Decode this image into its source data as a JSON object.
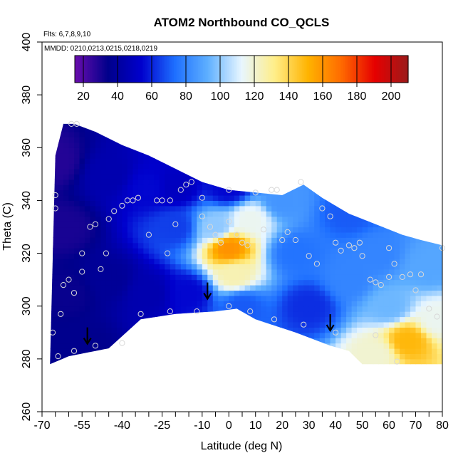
{
  "chart_data": {
    "type": "heatmap",
    "title": "ATOM2 Northbound CO_QCLS",
    "subtitle_flights": "Flts: 6,7,8,9,10",
    "subtitle_dates": "MMDD: 0210,0213,0215,0218,0219",
    "xlabel": "Latitude (deg N)",
    "ylabel": "Theta (C)",
    "xlim": [
      -70,
      80
    ],
    "ylim": [
      260,
      400
    ],
    "x_ticks": [
      -70,
      -55,
      -40,
      -25,
      -10,
      0,
      10,
      20,
      30,
      40,
      50,
      60,
      70,
      80
    ],
    "x_minor_ticks": [
      -65,
      -60,
      -50,
      -45,
      -35,
      -30,
      -20,
      -15,
      -5,
      5,
      15,
      25,
      35,
      45,
      55,
      65,
      75
    ],
    "y_ticks": [
      260,
      280,
      300,
      320,
      340,
      360,
      380,
      400
    ],
    "colorbar": {
      "min": 15,
      "max": 210,
      "ticks": [
        20,
        40,
        60,
        80,
        100,
        120,
        140,
        160,
        180,
        200
      ],
      "colors": [
        "#6a0dad",
        "#00008b",
        "#0000cd",
        "#1e6fff",
        "#5fb0ff",
        "#e8f6ff",
        "#ffee88",
        "#ffb300",
        "#ff6a00",
        "#e60000",
        "#9b1b1b"
      ]
    },
    "top_boundary": [
      [
        -65,
        357
      ],
      [
        -62,
        369
      ],
      [
        -58,
        369
      ],
      [
        -50,
        366
      ],
      [
        -40,
        361
      ],
      [
        -30,
        357
      ],
      [
        -20,
        352
      ],
      [
        -10,
        347
      ],
      [
        0,
        344
      ],
      [
        10,
        343
      ],
      [
        20,
        342
      ],
      [
        28,
        346
      ],
      [
        35,
        341
      ],
      [
        45,
        335
      ],
      [
        55,
        331
      ],
      [
        65,
        327
      ],
      [
        72,
        325
      ],
      [
        80,
        323
      ]
    ],
    "bottom_boundary": [
      [
        80,
        278
      ],
      [
        50,
        278
      ],
      [
        45,
        283
      ],
      [
        38,
        285
      ],
      [
        25,
        290
      ],
      [
        10,
        295
      ],
      [
        3,
        299
      ],
      [
        -5,
        298
      ],
      [
        -20,
        297
      ],
      [
        -33,
        295
      ],
      [
        -45,
        284
      ],
      [
        -60,
        281
      ],
      [
        -67,
        278
      ]
    ],
    "field_anchors": [
      {
        "x": -65,
        "y": 355,
        "v": 28
      },
      {
        "x": -62,
        "y": 330,
        "v": 30
      },
      {
        "x": -60,
        "y": 305,
        "v": 33
      },
      {
        "x": -55,
        "y": 285,
        "v": 35
      },
      {
        "x": -45,
        "y": 350,
        "v": 45
      },
      {
        "x": -45,
        "y": 310,
        "v": 38
      },
      {
        "x": -30,
        "y": 345,
        "v": 55
      },
      {
        "x": -30,
        "y": 305,
        "v": 45
      },
      {
        "x": -20,
        "y": 330,
        "v": 65
      },
      {
        "x": -15,
        "y": 305,
        "v": 55
      },
      {
        "x": -20,
        "y": 345,
        "v": 50
      },
      {
        "x": 0,
        "y": 345,
        "v": 55
      },
      {
        "x": 0,
        "y": 322,
        "v": 160
      },
      {
        "x": 2,
        "y": 312,
        "v": 125
      },
      {
        "x": -5,
        "y": 330,
        "v": 100
      },
      {
        "x": 5,
        "y": 300,
        "v": 70
      },
      {
        "x": 8,
        "y": 333,
        "v": 115
      },
      {
        "x": 20,
        "y": 340,
        "v": 85
      },
      {
        "x": 25,
        "y": 320,
        "v": 75
      },
      {
        "x": 30,
        "y": 300,
        "v": 62
      },
      {
        "x": 45,
        "y": 335,
        "v": 70
      },
      {
        "x": 45,
        "y": 310,
        "v": 80
      },
      {
        "x": 55,
        "y": 320,
        "v": 80
      },
      {
        "x": 60,
        "y": 300,
        "v": 95
      },
      {
        "x": 67,
        "y": 287,
        "v": 150
      },
      {
        "x": 55,
        "y": 282,
        "v": 120
      },
      {
        "x": 75,
        "y": 315,
        "v": 90
      },
      {
        "x": 78,
        "y": 295,
        "v": 115
      }
    ],
    "observations": [
      [
        -59,
        369
      ],
      [
        -57,
        369
      ],
      [
        -65,
        342
      ],
      [
        -65,
        337
      ],
      [
        -62,
        308
      ],
      [
        -63,
        297
      ],
      [
        -60,
        310
      ],
      [
        -58,
        305
      ],
      [
        -55,
        313
      ],
      [
        -55,
        320
      ],
      [
        -52,
        330
      ],
      [
        -50,
        331
      ],
      [
        -48,
        314
      ],
      [
        -46,
        320
      ],
      [
        -45,
        333
      ],
      [
        -43,
        336
      ],
      [
        -40,
        338
      ],
      [
        -38,
        340
      ],
      [
        -36,
        340
      ],
      [
        -34,
        341
      ],
      [
        -30,
        327
      ],
      [
        -27,
        340
      ],
      [
        -25,
        340
      ],
      [
        -22,
        340
      ],
      [
        -20,
        331
      ],
      [
        -23,
        320
      ],
      [
        -18,
        344
      ],
      [
        -16,
        346
      ],
      [
        -14,
        347
      ],
      [
        -10,
        341
      ],
      [
        -10,
        334
      ],
      [
        -7,
        330
      ],
      [
        -5,
        327
      ],
      [
        -3,
        324
      ],
      [
        0,
        344
      ],
      [
        0,
        332
      ],
      [
        3,
        327
      ],
      [
        5,
        324
      ],
      [
        7,
        323
      ],
      [
        10,
        343
      ],
      [
        13,
        329
      ],
      [
        16,
        344
      ],
      [
        18,
        344
      ],
      [
        20,
        325
      ],
      [
        22,
        328
      ],
      [
        25,
        325
      ],
      [
        27,
        347
      ],
      [
        30,
        319
      ],
      [
        33,
        316
      ],
      [
        35,
        337
      ],
      [
        38,
        334
      ],
      [
        40,
        324
      ],
      [
        42,
        321
      ],
      [
        45,
        323
      ],
      [
        47,
        322
      ],
      [
        49,
        324
      ],
      [
        50,
        319
      ],
      [
        53,
        310
      ],
      [
        55,
        309
      ],
      [
        57,
        308
      ],
      [
        60,
        311
      ],
      [
        60,
        322
      ],
      [
        62,
        316
      ],
      [
        65,
        311
      ],
      [
        68,
        312
      ],
      [
        70,
        306
      ],
      [
        72,
        312
      ],
      [
        75,
        299
      ],
      [
        78,
        296
      ],
      [
        80,
        322
      ],
      [
        -64,
        281
      ],
      [
        -58,
        283
      ],
      [
        -50,
        285
      ],
      [
        -40,
        286
      ],
      [
        -33,
        297
      ],
      [
        -22,
        298
      ],
      [
        -12,
        298
      ],
      [
        0,
        300
      ],
      [
        8,
        298
      ],
      [
        17,
        295
      ],
      [
        28,
        293
      ],
      [
        40,
        290
      ],
      [
        55,
        289
      ],
      [
        63,
        279
      ],
      [
        -66,
        290
      ]
    ],
    "arrows": [
      [
        -53,
        286
      ],
      [
        -8,
        303
      ],
      [
        38,
        291
      ]
    ]
  }
}
